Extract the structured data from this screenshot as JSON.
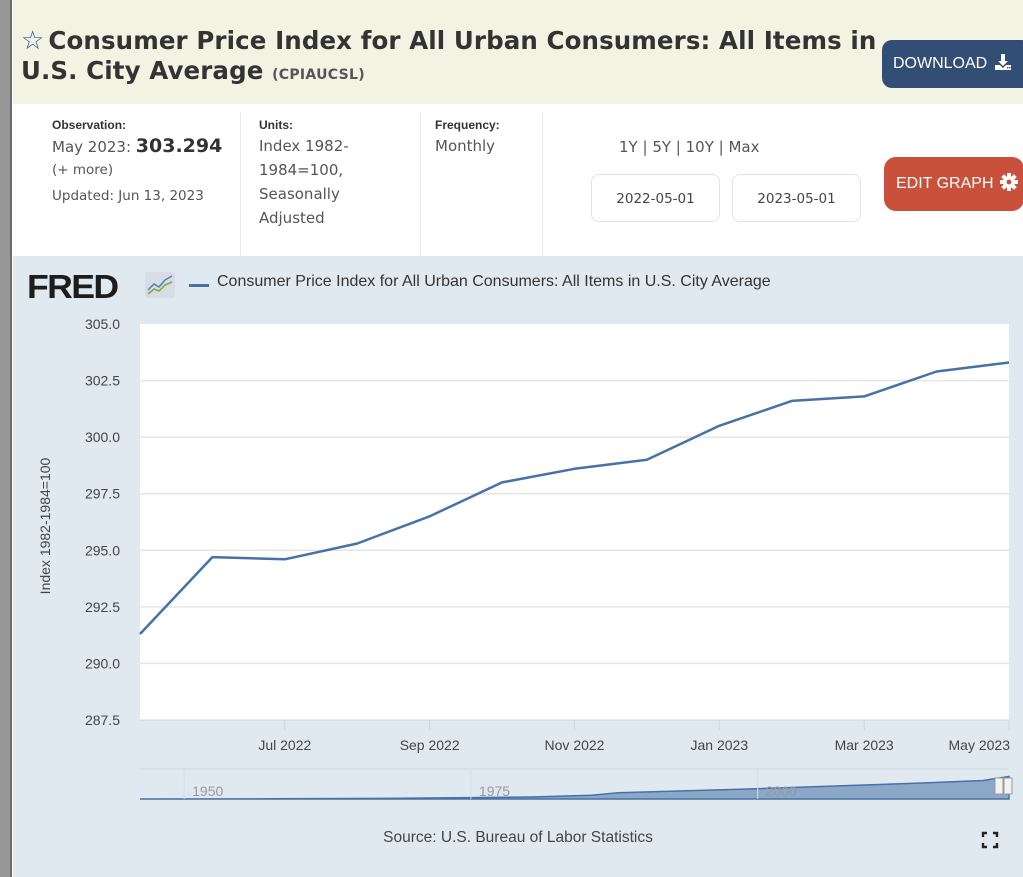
{
  "header": {
    "favorite_icon": "star-outline-icon",
    "title": "Consumer Price Index for All Urban Consumers: All Items in U.S. City Average",
    "series_code": "(CPIAUCSL)",
    "download_label": "DOWNLOAD",
    "download_icon": "download-icon"
  },
  "meta": {
    "observation": {
      "label": "Observation:",
      "date": "May 2023:",
      "value": "303.294",
      "more": "(+ more)",
      "updated": "Updated: Jun 13, 2023"
    },
    "units": {
      "label": "Units:",
      "lines": [
        "Index 1982-",
        "1984=100,",
        "Seasonally",
        "Adjusted"
      ]
    },
    "frequency": {
      "label": "Frequency:",
      "value": "Monthly"
    },
    "ranges": [
      "1Y",
      "5Y",
      "10Y",
      "Max"
    ],
    "range_separator": " | ",
    "start_date": "2022-05-01",
    "end_date": "2023-05-01",
    "edit_label": "EDIT GRAPH",
    "edit_icon": "gear-icon"
  },
  "graph": {
    "logo": "FRED",
    "legend_label": "Consumer Price Index for All Urban Consumers: All Items in U.S. City Average",
    "source": "Source: U.S. Bureau of Labor Statistics",
    "fullscreen_icon": "fullscreen-icon",
    "navigator_labels": [
      "1950",
      "1975",
      "2000"
    ]
  },
  "chart_data": {
    "type": "line",
    "title": "Consumer Price Index for All Urban Consumers: All Items in U.S. City Average",
    "xlabel": "",
    "ylabel": "Index 1982-1984=100",
    "ylim": [
      287.5,
      305.0
    ],
    "yticks": [
      "305.0",
      "302.5",
      "300.0",
      "297.5",
      "295.0",
      "292.5",
      "290.0",
      "287.5"
    ],
    "ytick_values": [
      305.0,
      302.5,
      300.0,
      297.5,
      295.0,
      292.5,
      290.0,
      287.5
    ],
    "xticks": [
      "Jul 2022",
      "Sep 2022",
      "Nov 2022",
      "Jan 2023",
      "Mar 2023",
      "May 2023"
    ],
    "xtick_index": [
      2,
      4,
      6,
      8,
      10,
      12
    ],
    "grid": true,
    "legend": "top-left",
    "series": [
      {
        "name": "Consumer Price Index for All Urban Consumers: All Items in U.S. City Average",
        "color": "#4572a7",
        "x": [
          "2022-05",
          "2022-06",
          "2022-07",
          "2022-08",
          "2022-09",
          "2022-10",
          "2022-11",
          "2022-12",
          "2023-01",
          "2023-02",
          "2023-03",
          "2023-04",
          "2023-05"
        ],
        "values": [
          291.3,
          294.7,
          294.6,
          295.3,
          296.5,
          298.0,
          298.6,
          299.0,
          300.5,
          301.6,
          301.8,
          302.9,
          303.3
        ]
      }
    ]
  }
}
